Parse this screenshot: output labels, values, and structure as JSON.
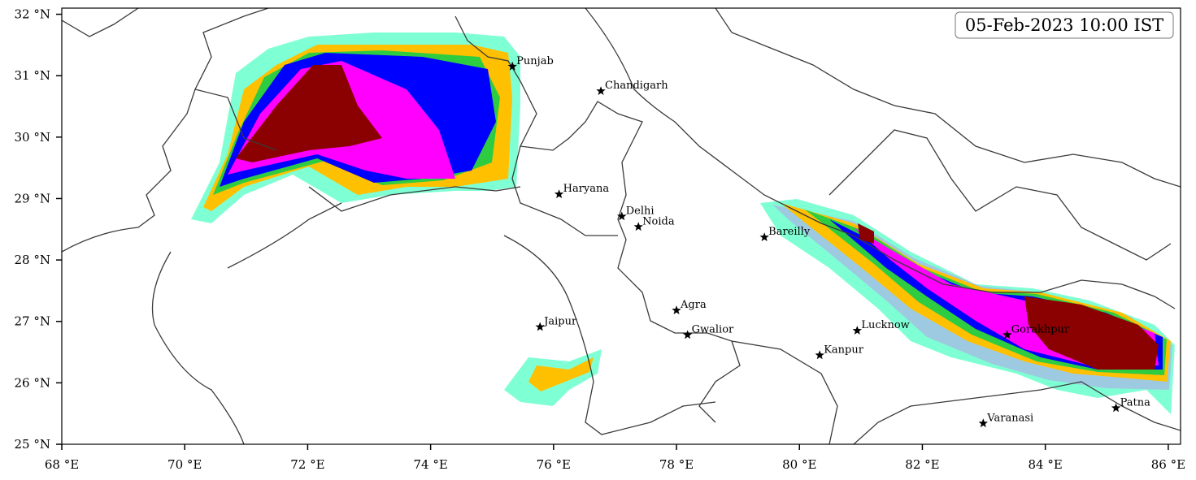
{
  "title": "05-Feb-2023 10:00 IST",
  "xlim": [
    68,
    86.2
  ],
  "ylim": [
    25,
    32.1
  ],
  "xticks": [
    {
      "value": 68,
      "label": "68 °E"
    },
    {
      "value": 70,
      "label": "70 °E"
    },
    {
      "value": 72,
      "label": "72 °E"
    },
    {
      "value": 74,
      "label": "74 °E"
    },
    {
      "value": 76,
      "label": "76 °E"
    },
    {
      "value": 78,
      "label": "78 °E"
    },
    {
      "value": 80,
      "label": "80 °E"
    },
    {
      "value": 82,
      "label": "82 °E"
    },
    {
      "value": 84,
      "label": "84 °E"
    },
    {
      "value": 86,
      "label": "86 °E"
    }
  ],
  "yticks": [
    {
      "value": 25,
      "label": "25 °N"
    },
    {
      "value": 26,
      "label": "26 °N"
    },
    {
      "value": 27,
      "label": "27 °N"
    },
    {
      "value": 28,
      "label": "28 °N"
    },
    {
      "value": 29,
      "label": "29 °N"
    },
    {
      "value": 30,
      "label": "30 °N"
    },
    {
      "value": 31,
      "label": "31 °N"
    },
    {
      "value": 32,
      "label": "32 °N"
    }
  ],
  "cities": [
    {
      "name": "Punjab",
      "lon": 75.33,
      "lat": 31.15
    },
    {
      "name": "Chandigarh",
      "lon": 76.77,
      "lat": 30.75
    },
    {
      "name": "Haryana",
      "lon": 76.09,
      "lat": 29.07
    },
    {
      "name": "Delhi",
      "lon": 77.11,
      "lat": 28.71
    },
    {
      "name": "Noida",
      "lon": 77.38,
      "lat": 28.54
    },
    {
      "name": "Bareilly",
      "lon": 79.43,
      "lat": 28.37
    },
    {
      "name": "Agra",
      "lon": 78.0,
      "lat": 27.18
    },
    {
      "name": "Jaipur",
      "lon": 75.78,
      "lat": 26.91
    },
    {
      "name": "Gwalior",
      "lon": 78.18,
      "lat": 26.78
    },
    {
      "name": "Lucknow",
      "lon": 80.94,
      "lat": 26.85
    },
    {
      "name": "Kanpur",
      "lon": 80.33,
      "lat": 26.45
    },
    {
      "name": "Gorakhpur",
      "lon": 83.38,
      "lat": 26.78
    },
    {
      "name": "Varanasi",
      "lon": 82.99,
      "lat": 25.34
    },
    {
      "name": "Patna",
      "lon": 85.15,
      "lat": 25.59
    }
  ]
}
